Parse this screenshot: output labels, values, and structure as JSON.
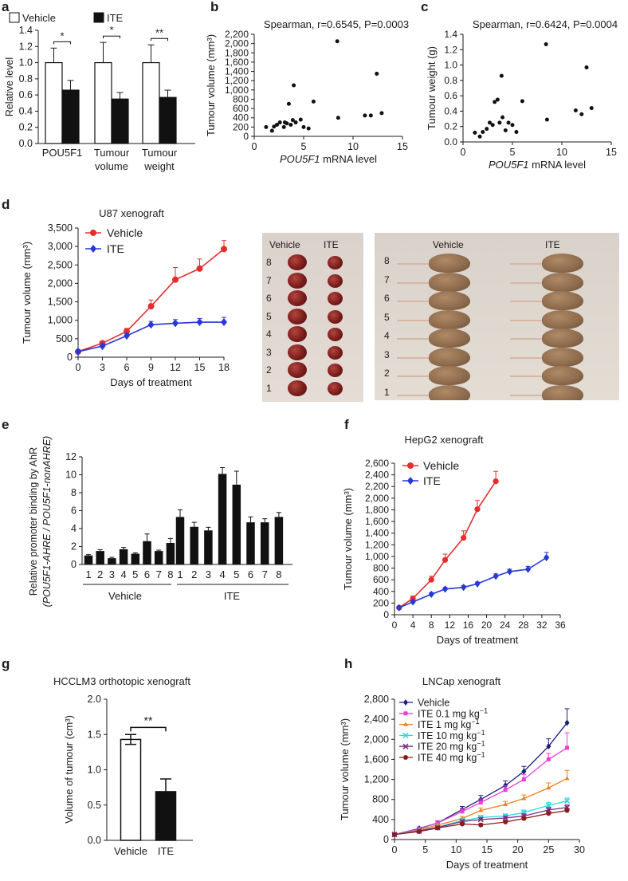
{
  "panel_letters": [
    "a",
    "b",
    "c",
    "d",
    "e",
    "f",
    "g",
    "h"
  ],
  "colors": {
    "red": "#e52d2d",
    "blue": "#2737d9",
    "black": "#111111",
    "white": "#ffffff"
  },
  "chart_data": [
    {
      "id": "a",
      "type": "bar",
      "ylabel": "Relative level",
      "categories": [
        "POU5F1",
        "Tumour volume",
        "Tumour weight"
      ],
      "category_lines": [
        [
          "POU5F1"
        ],
        [
          "Tumour",
          "volume"
        ],
        [
          "Tumour",
          "weight"
        ]
      ],
      "series": [
        {
          "name": "Vehicle",
          "values": [
            1.0,
            1.0,
            1.0
          ],
          "errors": [
            0.18,
            0.25,
            0.22
          ]
        },
        {
          "name": "ITE",
          "values": [
            0.66,
            0.55,
            0.57
          ],
          "errors": [
            0.12,
            0.08,
            0.09
          ]
        }
      ],
      "significance": [
        "*",
        "*",
        "**"
      ],
      "ylim": [
        0,
        1.4
      ],
      "yticks": [
        "0.0",
        "0.2",
        "0.4",
        "0.6",
        "0.8",
        "1.0",
        "1.2",
        "1.4"
      ]
    },
    {
      "id": "b",
      "type": "scatter",
      "title": "Spearman, r=0.6545, P=0.0003",
      "ylabel": "Tumour volume (mm³)",
      "xlabel_italic": "POU5F1",
      "xlabel_rest": " mRNA level",
      "xlim": [
        0,
        15
      ],
      "xticks": [
        "0",
        "5",
        "10",
        "15"
      ],
      "ylim": [
        0,
        2200
      ],
      "yticks": [
        "0",
        "200",
        "400",
        "600",
        "800",
        "1,000",
        "1,200",
        "1,400",
        "1,600",
        "1,800",
        "2,000",
        "2,200"
      ],
      "points": [
        [
          1.2,
          200
        ],
        [
          1.8,
          120
        ],
        [
          2.0,
          210
        ],
        [
          2.3,
          250
        ],
        [
          2.6,
          300
        ],
        [
          3.0,
          200
        ],
        [
          3.1,
          300
        ],
        [
          3.3,
          280
        ],
        [
          3.5,
          700
        ],
        [
          3.7,
          250
        ],
        [
          3.9,
          350
        ],
        [
          4.0,
          1100
        ],
        [
          4.2,
          300
        ],
        [
          4.7,
          360
        ],
        [
          5.0,
          200
        ],
        [
          5.5,
          170
        ],
        [
          6.0,
          750
        ],
        [
          8.4,
          2050
        ],
        [
          8.5,
          400
        ],
        [
          11.2,
          450
        ],
        [
          11.8,
          450
        ],
        [
          12.4,
          1350
        ],
        [
          12.9,
          500
        ]
      ]
    },
    {
      "id": "c",
      "type": "scatter",
      "title": "Spearman, r=0.6424, P=0.0004",
      "ylabel": "Tumour weight (g)",
      "xlabel_italic": "POU5F1",
      "xlabel_rest": " mRNA level",
      "xlim": [
        0,
        15
      ],
      "xticks": [
        "0",
        "5",
        "10",
        "15"
      ],
      "ylim": [
        0,
        1.4
      ],
      "yticks": [
        "0.0",
        "0.2",
        "0.4",
        "0.6",
        "0.8",
        "1.0",
        "1.2",
        "1.4"
      ],
      "points": [
        [
          1.2,
          0.12
        ],
        [
          1.7,
          0.07
        ],
        [
          2.0,
          0.13
        ],
        [
          2.4,
          0.17
        ],
        [
          2.7,
          0.25
        ],
        [
          3.0,
          0.22
        ],
        [
          3.2,
          0.52
        ],
        [
          3.5,
          0.55
        ],
        [
          3.7,
          0.25
        ],
        [
          3.9,
          0.86
        ],
        [
          4.0,
          0.32
        ],
        [
          4.3,
          0.15
        ],
        [
          4.6,
          0.25
        ],
        [
          5.0,
          0.22
        ],
        [
          5.4,
          0.13
        ],
        [
          6.0,
          0.53
        ],
        [
          8.4,
          1.27
        ],
        [
          8.5,
          0.29
        ],
        [
          11.4,
          0.41
        ],
        [
          12.0,
          0.36
        ],
        [
          12.5,
          0.97
        ],
        [
          13.0,
          0.44
        ]
      ]
    },
    {
      "id": "d",
      "type": "line",
      "title": "U87 xenograft",
      "ylabel": "Tumour volume (mm³)",
      "xlabel": "Days of treatment",
      "x": [
        0,
        3,
        6,
        9,
        12,
        15,
        18
      ],
      "xticks": [
        "0",
        "3",
        "6",
        "9",
        "12",
        "15",
        "18"
      ],
      "ylim": [
        0,
        3500
      ],
      "yticks": [
        "0",
        "500",
        "1,000",
        "1,500",
        "2,000",
        "2,500",
        "3,000",
        "3,500"
      ],
      "series": [
        {
          "name": "Vehicle",
          "color": "#e52d2d",
          "marker": "circle",
          "values": [
            150,
            380,
            700,
            1380,
            2100,
            2400,
            2930
          ],
          "errors": [
            40,
            50,
            80,
            170,
            330,
            260,
            230
          ]
        },
        {
          "name": "ITE",
          "color": "#2737d9",
          "marker": "diamond",
          "values": [
            150,
            300,
            580,
            880,
            920,
            950,
            950
          ],
          "errors": [
            30,
            40,
            60,
            90,
            100,
            100,
            130
          ]
        }
      ]
    },
    {
      "id": "e",
      "type": "bar",
      "ylabel_line1": "Relative promoter binding by AhR",
      "ylabel_line2": "(POU5F1-AHRE / POU5F1-nonAHRE)",
      "categories": [
        "1",
        "2",
        "3",
        "4",
        "5",
        "6",
        "7",
        "8",
        "1",
        "2",
        "3",
        "4",
        "5",
        "6",
        "7",
        "8"
      ],
      "groups": [
        {
          "name": "Vehicle",
          "count": 8
        },
        {
          "name": "ITE",
          "count": 8
        }
      ],
      "values": [
        1.0,
        1.5,
        0.7,
        1.7,
        1.2,
        2.6,
        1.5,
        2.4,
        5.3,
        4.2,
        3.8,
        10.1,
        8.9,
        4.7,
        4.7,
        5.3
      ],
      "errors": [
        0.1,
        0.15,
        0.1,
        0.2,
        0.1,
        0.8,
        0.1,
        0.5,
        0.8,
        0.5,
        0.35,
        0.7,
        1.5,
        0.6,
        0.4,
        0.5
      ],
      "ylim": [
        0,
        12
      ],
      "yticks": [
        "0",
        "2",
        "4",
        "6",
        "8",
        "10",
        "12"
      ]
    },
    {
      "id": "f",
      "type": "line",
      "title": "HepG2 xenograft",
      "ylabel": "Tumour volume (mm³)",
      "xlabel": "Days of  treatment",
      "xlim": [
        0,
        36
      ],
      "xticks": [
        "0",
        "4",
        "8",
        "12",
        "16",
        "20",
        "24",
        "28",
        "32",
        "36"
      ],
      "ylim": [
        0,
        2600
      ],
      "yticks": [
        "0",
        "200",
        "400",
        "600",
        "800",
        "1,000",
        "1,200",
        "1,400",
        "1,600",
        "1,800",
        "2,000",
        "2,200",
        "2,400",
        "2,600"
      ],
      "series": [
        {
          "name": "Vehicle",
          "color": "#e52d2d",
          "marker": "circle",
          "x": [
            1,
            4,
            8,
            11,
            15,
            18,
            22
          ],
          "values": [
            120,
            280,
            600,
            940,
            1320,
            1810,
            2290
          ],
          "errors": [
            30,
            40,
            60,
            100,
            120,
            150,
            170
          ]
        },
        {
          "name": "ITE",
          "color": "#2737d9",
          "marker": "diamond",
          "x": [
            1,
            4,
            8,
            11,
            15,
            18,
            22,
            25,
            29,
            33
          ],
          "values": [
            120,
            220,
            350,
            440,
            470,
            530,
            660,
            740,
            780,
            980
          ],
          "errors": [
            20,
            20,
            30,
            30,
            30,
            30,
            40,
            40,
            50,
            90
          ]
        }
      ]
    },
    {
      "id": "g",
      "type": "bar",
      "title": "HCCLM3 orthotopic xenograft",
      "ylabel": "Volume of tumour (cm³)",
      "categories": [
        "Vehicle",
        "ITE"
      ],
      "values": [
        1.43,
        0.69
      ],
      "errors": [
        0.07,
        0.18
      ],
      "significance": "**",
      "ylim": [
        0,
        2.0
      ],
      "yticks": [
        "0.0",
        "0.5",
        "1.0",
        "1.5",
        "2.0"
      ]
    },
    {
      "id": "h",
      "type": "line",
      "title": "LNCap xenograft",
      "ylabel": "Tumour volume (mm³)",
      "xlabel": "Days of treatment",
      "xlim": [
        0,
        30
      ],
      "xticks": [
        "0",
        "5",
        "10",
        "15",
        "20",
        "25",
        "30"
      ],
      "ylim": [
        0,
        2800
      ],
      "yticks": [
        "0",
        "400",
        "800",
        "1,200",
        "1,600",
        "2,000",
        "2,400",
        "2,800"
      ],
      "x": [
        0,
        4,
        7,
        11,
        14,
        18,
        21,
        25,
        28
      ],
      "series": [
        {
          "name": "Vehicle",
          "label": "Vehicle",
          "unit": "",
          "color": "#1b1f7a",
          "marker": "diamond",
          "values": [
            100,
            220,
            330,
            600,
            800,
            1080,
            1360,
            1860,
            2330
          ],
          "errors": [
            20,
            30,
            40,
            60,
            80,
            90,
            100,
            150,
            280
          ]
        },
        {
          "name": "ITE 0.1 mg kg-1",
          "label": "ITE 0.1 mg kg",
          "unit": "−1",
          "color": "#e83fd8",
          "marker": "square",
          "values": [
            100,
            210,
            330,
            560,
            740,
            990,
            1200,
            1600,
            1830
          ],
          "errors": [
            20,
            30,
            40,
            60,
            70,
            80,
            100,
            120,
            300
          ]
        },
        {
          "name": "ITE 1 mg kg-1",
          "label": "ITE 1 mg kg",
          "unit": "−1",
          "color": "#f07f1c",
          "marker": "triangle",
          "values": [
            100,
            190,
            290,
            420,
            580,
            700,
            820,
            1030,
            1220
          ],
          "errors": [
            20,
            20,
            30,
            40,
            50,
            60,
            70,
            100,
            160
          ]
        },
        {
          "name": "ITE 10 mg kg-1",
          "label": "ITE 10 mg kg",
          "unit": "−1",
          "color": "#35d6d9",
          "marker": "x",
          "values": [
            100,
            180,
            250,
            380,
            440,
            470,
            540,
            680,
            770
          ],
          "errors": [
            15,
            20,
            30,
            30,
            40,
            40,
            50,
            60,
            60
          ]
        },
        {
          "name": "ITE 20 mg kg-1",
          "label": "ITE 20 mg kg",
          "unit": "−1",
          "color": "#7a2a8a",
          "marker": "x",
          "values": [
            100,
            170,
            240,
            360,
            400,
            430,
            470,
            590,
            640
          ],
          "errors": [
            15,
            20,
            25,
            30,
            35,
            35,
            40,
            50,
            50
          ]
        },
        {
          "name": "ITE 40 mg kg-1",
          "label": "ITE 40 mg kg",
          "unit": "−1",
          "color": "#8a1c1c",
          "marker": "circle",
          "values": [
            100,
            160,
            230,
            310,
            290,
            350,
            420,
            520,
            580
          ],
          "errors": [
            15,
            20,
            25,
            25,
            30,
            30,
            30,
            40,
            40
          ]
        }
      ]
    }
  ],
  "photos": {
    "tumours": {
      "columns": [
        "Vehicle",
        "ITE"
      ],
      "row_labels": [
        "8",
        "7",
        "6",
        "5",
        "4",
        "3",
        "2",
        "1"
      ]
    },
    "mice": {
      "columns": [
        "Vehicle",
        "ITE"
      ],
      "row_labels": [
        "8",
        "7",
        "6",
        "5",
        "4",
        "3",
        "2",
        "1"
      ]
    }
  }
}
